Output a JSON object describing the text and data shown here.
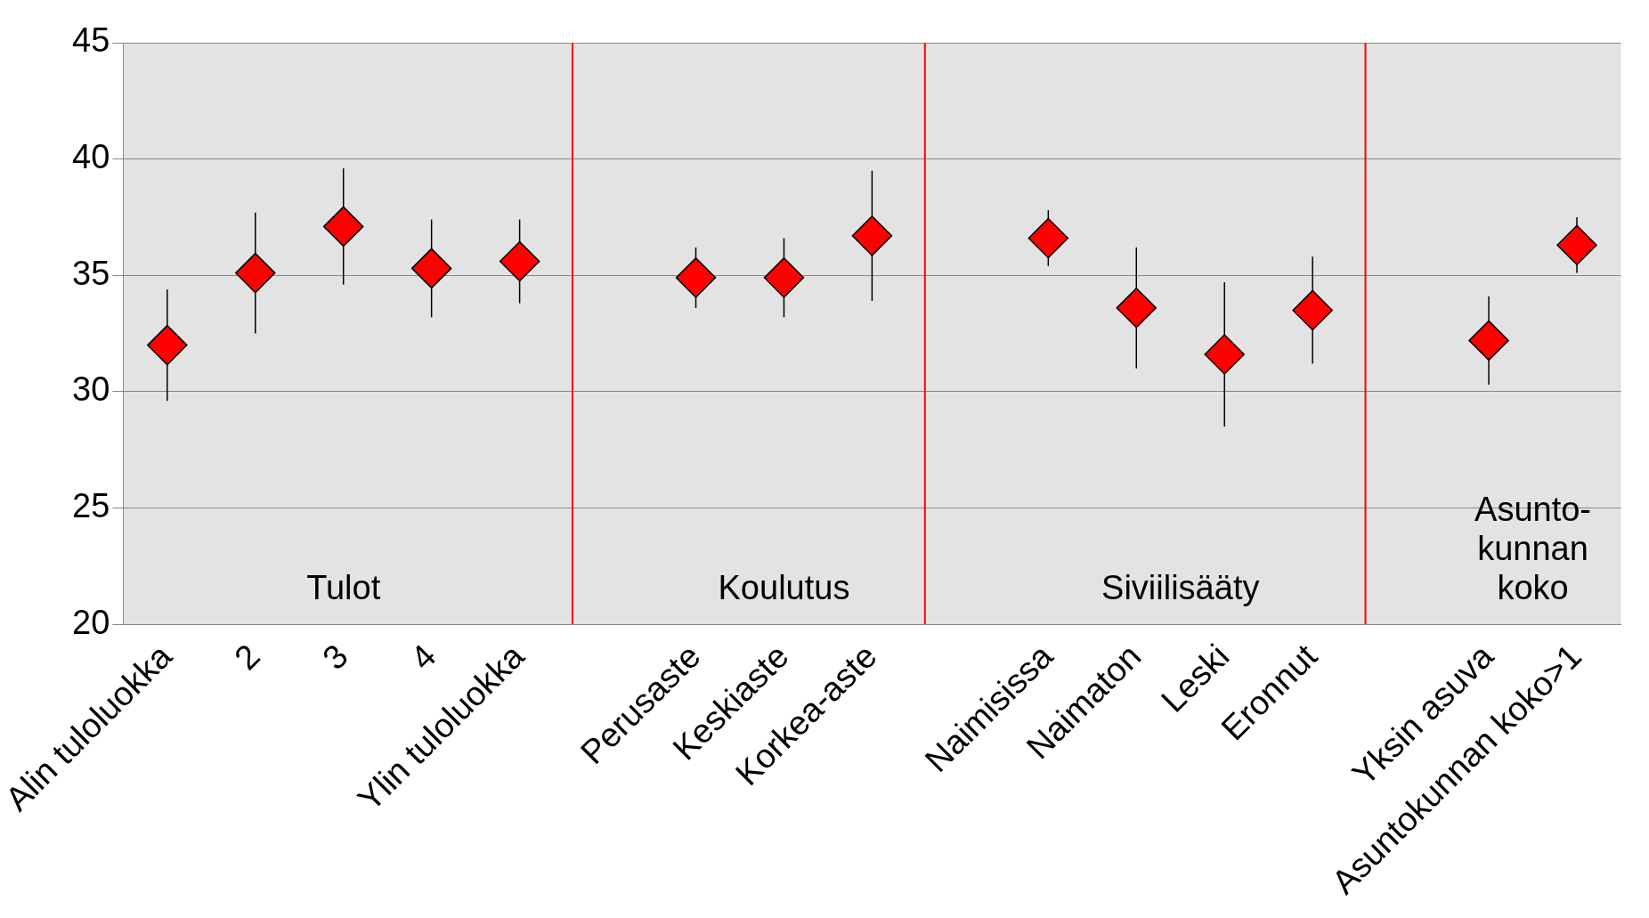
{
  "chart_data": {
    "type": "scatter",
    "categories": [
      "Alin tuloluokka",
      "2",
      "3",
      "4",
      "Ylin tuloluokka",
      null,
      "Perusaste",
      "Keskiaste",
      "Korkea-aste",
      null,
      "Naimisissa",
      "Naimaton",
      "Leski",
      "Eronnut",
      null,
      "Yksin asuva",
      "Asuntokunnan koko>1"
    ],
    "values": [
      32.0,
      35.1,
      37.1,
      35.3,
      35.6,
      null,
      34.9,
      34.9,
      36.7,
      null,
      36.6,
      33.6,
      31.6,
      33.5,
      null,
      32.2,
      36.3
    ],
    "errors": [
      2.4,
      2.6,
      2.5,
      2.1,
      1.8,
      null,
      1.3,
      1.7,
      2.8,
      null,
      1.2,
      2.6,
      3.1,
      2.3,
      null,
      1.9,
      1.2
    ],
    "color": "#ff0000",
    "marker": "diamond",
    "ylim": [
      20,
      45
    ],
    "yticks": [
      20,
      25,
      30,
      35,
      40,
      45
    ],
    "grid": "y",
    "ref_lines": [
      {
        "axis": "x",
        "color": "#ff0000"
      },
      {
        "axis": "x",
        "color": "#ff0000"
      },
      {
        "axis": "x",
        "color": "#ff0000"
      }
    ],
    "annotations": [
      "Tulot",
      "Koulutus",
      "Siviilisääty",
      "Asunto-\nkunnan\nkoko"
    ]
  }
}
